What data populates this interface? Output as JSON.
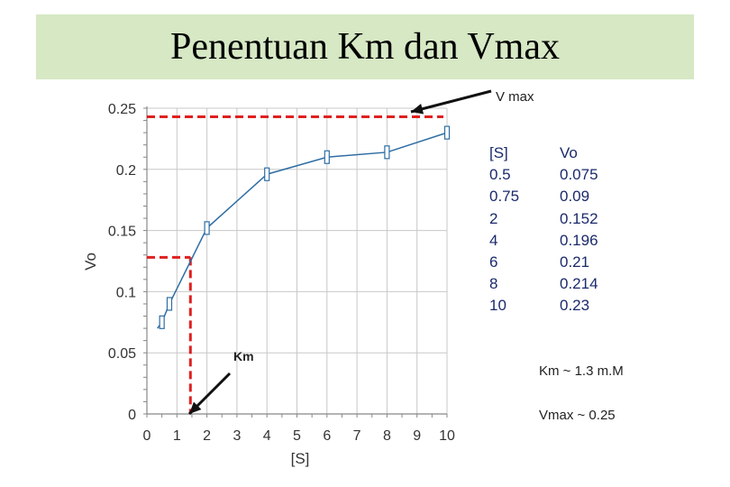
{
  "slide": {
    "title": "Penentuan Km dan Vmax",
    "title_band_color": "#d6e8c4"
  },
  "chart_data": {
    "type": "line",
    "title": "",
    "xlabel": "[S]",
    "ylabel": "Vo",
    "xlim": [
      0,
      10
    ],
    "ylim": [
      0,
      0.25
    ],
    "x_ticks": [
      "0",
      "1",
      "2",
      "3",
      "4",
      "5",
      "6",
      "7",
      "8",
      "9",
      "10"
    ],
    "y_ticks": [
      "0",
      "0.05",
      "0.1",
      "0.15",
      "0.2",
      "0.25"
    ],
    "grid": true,
    "series": [
      {
        "x": [
          0.35,
          0.5,
          0.75,
          2,
          4,
          6,
          8,
          10
        ],
        "y": [
          0.07,
          0.075,
          0.09,
          0.152,
          0.196,
          0.21,
          0.214,
          0.23
        ],
        "color": "#2e6da4"
      }
    ],
    "annotations": {
      "vmax_label": "V max",
      "vmax_level": 0.243,
      "km_label": "Km",
      "km_x": 1.45,
      "half_vmax_level": 0.128,
      "dash_color": "#e02020"
    }
  },
  "data_table": {
    "headers": [
      "[S]",
      "Vo"
    ],
    "rows": [
      [
        "0.5",
        "0.075"
      ],
      [
        "0.75",
        "0.09"
      ],
      [
        "2",
        "0.152"
      ],
      [
        "4",
        "0.196"
      ],
      [
        "6",
        "0.21"
      ],
      [
        "8",
        "0.214"
      ],
      [
        "10",
        "0.23"
      ]
    ]
  },
  "notes": {
    "km": "Km ~ 1.3 m.M",
    "vmax": "Vmax ~ 0.25"
  }
}
